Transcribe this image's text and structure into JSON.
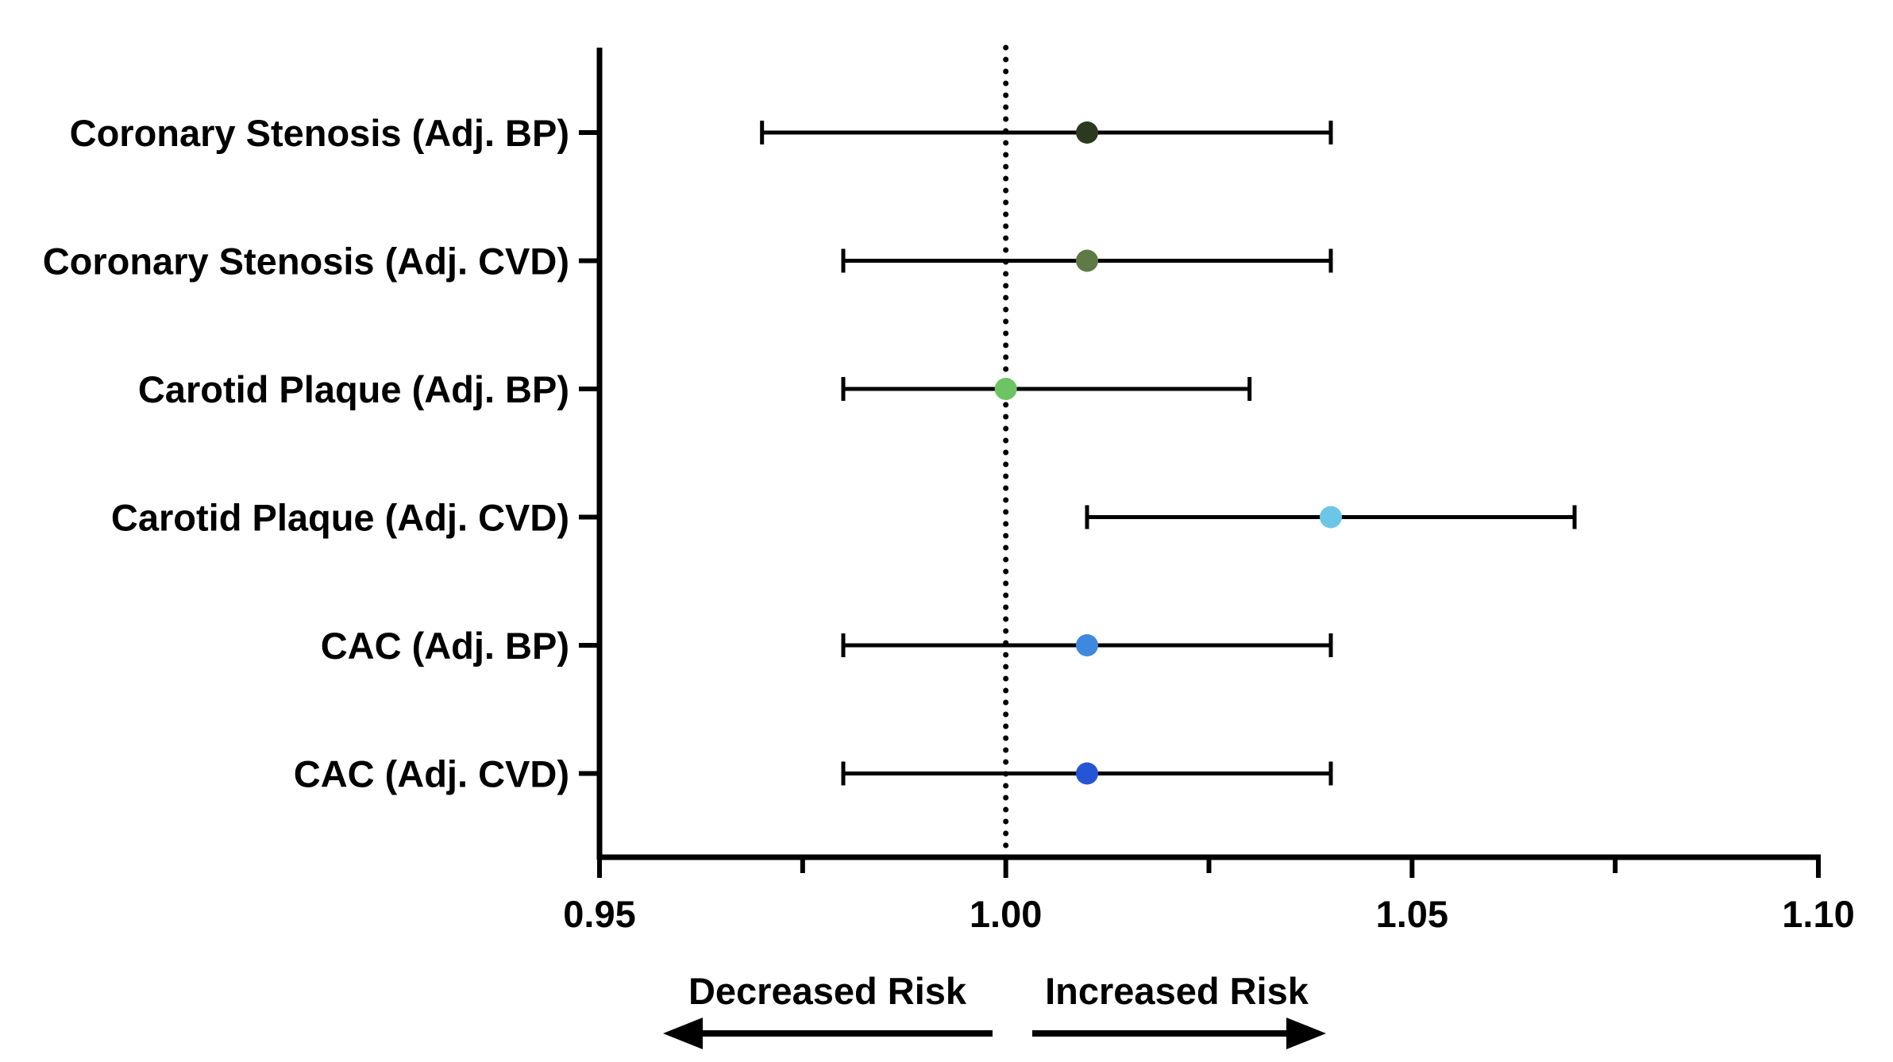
{
  "chart_data": {
    "type": "forest",
    "categories": [
      "Coronary Stenosis (Adj. BP)",
      "Coronary Stenosis (Adj. CVD)",
      "Carotid Plaque (Adj. BP)",
      "Carotid Plaque (Adj. CVD)",
      "CAC (Adj. BP)",
      "CAC (Adj. CVD)"
    ],
    "estimates": [
      1.01,
      1.01,
      1.0,
      1.04,
      1.01,
      1.01
    ],
    "lower": [
      0.97,
      0.98,
      0.98,
      1.01,
      0.98,
      0.98
    ],
    "upper": [
      1.04,
      1.04,
      1.03,
      1.07,
      1.04,
      1.04
    ],
    "point_colors": [
      "#2b3a1f",
      "#5d7a47",
      "#6cc464",
      "#6cc7e6",
      "#3f88df",
      "#2455d4"
    ],
    "xlim": [
      0.95,
      1.1
    ],
    "x_ticks": [
      "0.95",
      "1.00",
      "1.05",
      "1.10"
    ],
    "x_tick_values": [
      0.95,
      1.0,
      1.05,
      1.1
    ],
    "reference_line": 1.0,
    "annotations": {
      "left": "Decreased Risk",
      "right": "Increased Risk"
    },
    "title": "",
    "xlabel": "",
    "ylabel": "",
    "grid": false
  }
}
